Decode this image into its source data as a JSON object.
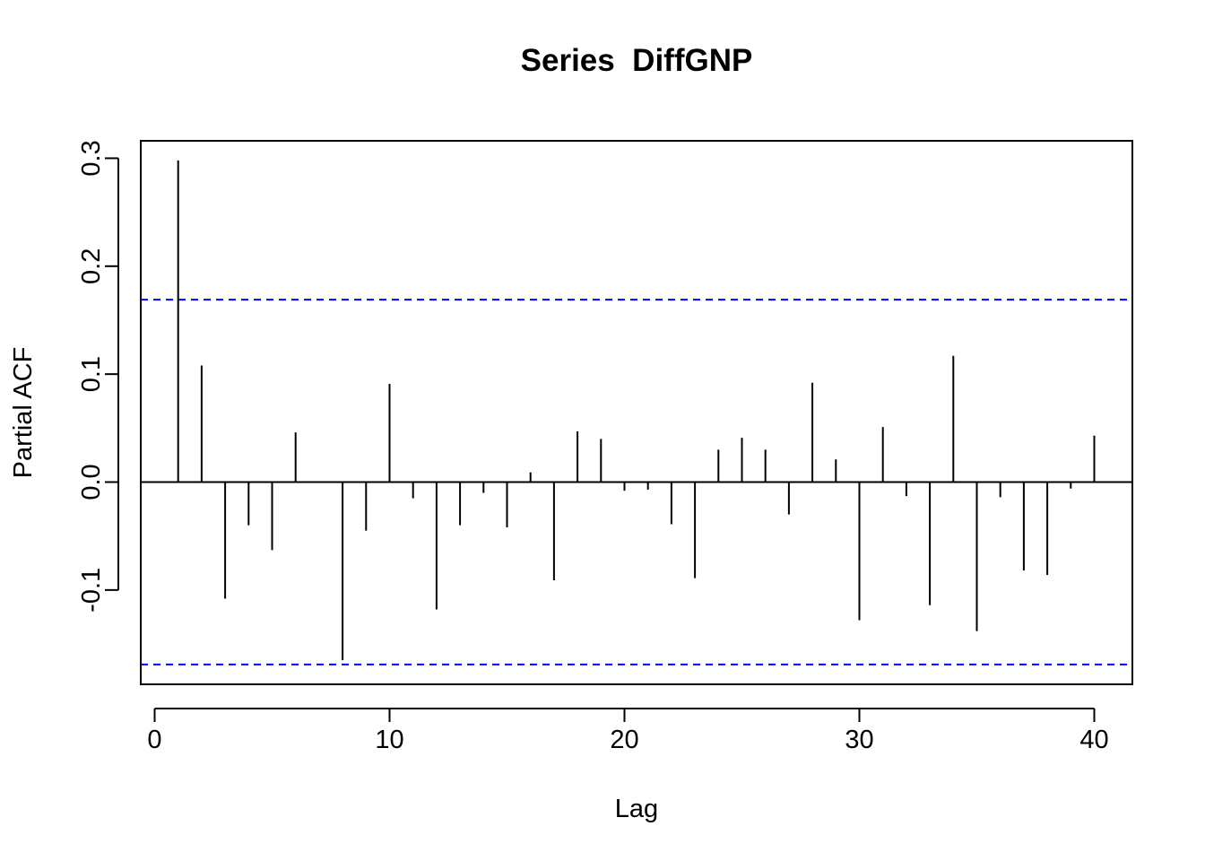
{
  "chart_data": {
    "type": "bar",
    "subtype": "partial-autocorrelation",
    "title": "Series  DiffGNP",
    "xlabel": "Lag",
    "ylabel": "Partial ACF",
    "xlim": [
      0,
      40
    ],
    "ylim": [
      -0.17,
      0.3
    ],
    "x_ticks": [
      0,
      10,
      20,
      30,
      40
    ],
    "y_ticks": [
      -0.1,
      0.0,
      0.1,
      0.2,
      0.3
    ],
    "x_tick_labels": [
      "0",
      "10",
      "20",
      "30",
      "40"
    ],
    "y_tick_labels": [
      "-0.1",
      "0.0",
      "0.1",
      "0.2",
      "0.3"
    ],
    "confidence_bound": 0.169,
    "confidence_color": "#0000ff",
    "bar_color": "#000000",
    "grid": false,
    "lags": [
      1,
      2,
      3,
      4,
      5,
      6,
      7,
      8,
      9,
      10,
      11,
      12,
      13,
      14,
      15,
      16,
      17,
      18,
      19,
      20,
      21,
      22,
      23,
      24,
      25,
      26,
      27,
      28,
      29,
      30,
      31,
      32,
      33,
      34,
      35,
      36,
      37,
      38,
      39,
      40
    ],
    "values": [
      0.298,
      0.108,
      -0.108,
      -0.04,
      -0.063,
      0.046,
      0.0,
      -0.165,
      -0.045,
      0.091,
      -0.015,
      -0.118,
      -0.04,
      -0.01,
      -0.042,
      0.009,
      -0.091,
      0.047,
      0.04,
      -0.008,
      -0.007,
      -0.039,
      -0.089,
      0.03,
      0.041,
      0.03,
      -0.03,
      0.092,
      0.021,
      -0.128,
      0.051,
      -0.013,
      -0.114,
      0.117,
      -0.138,
      -0.014,
      -0.082,
      -0.086,
      -0.006,
      0.043
    ]
  }
}
